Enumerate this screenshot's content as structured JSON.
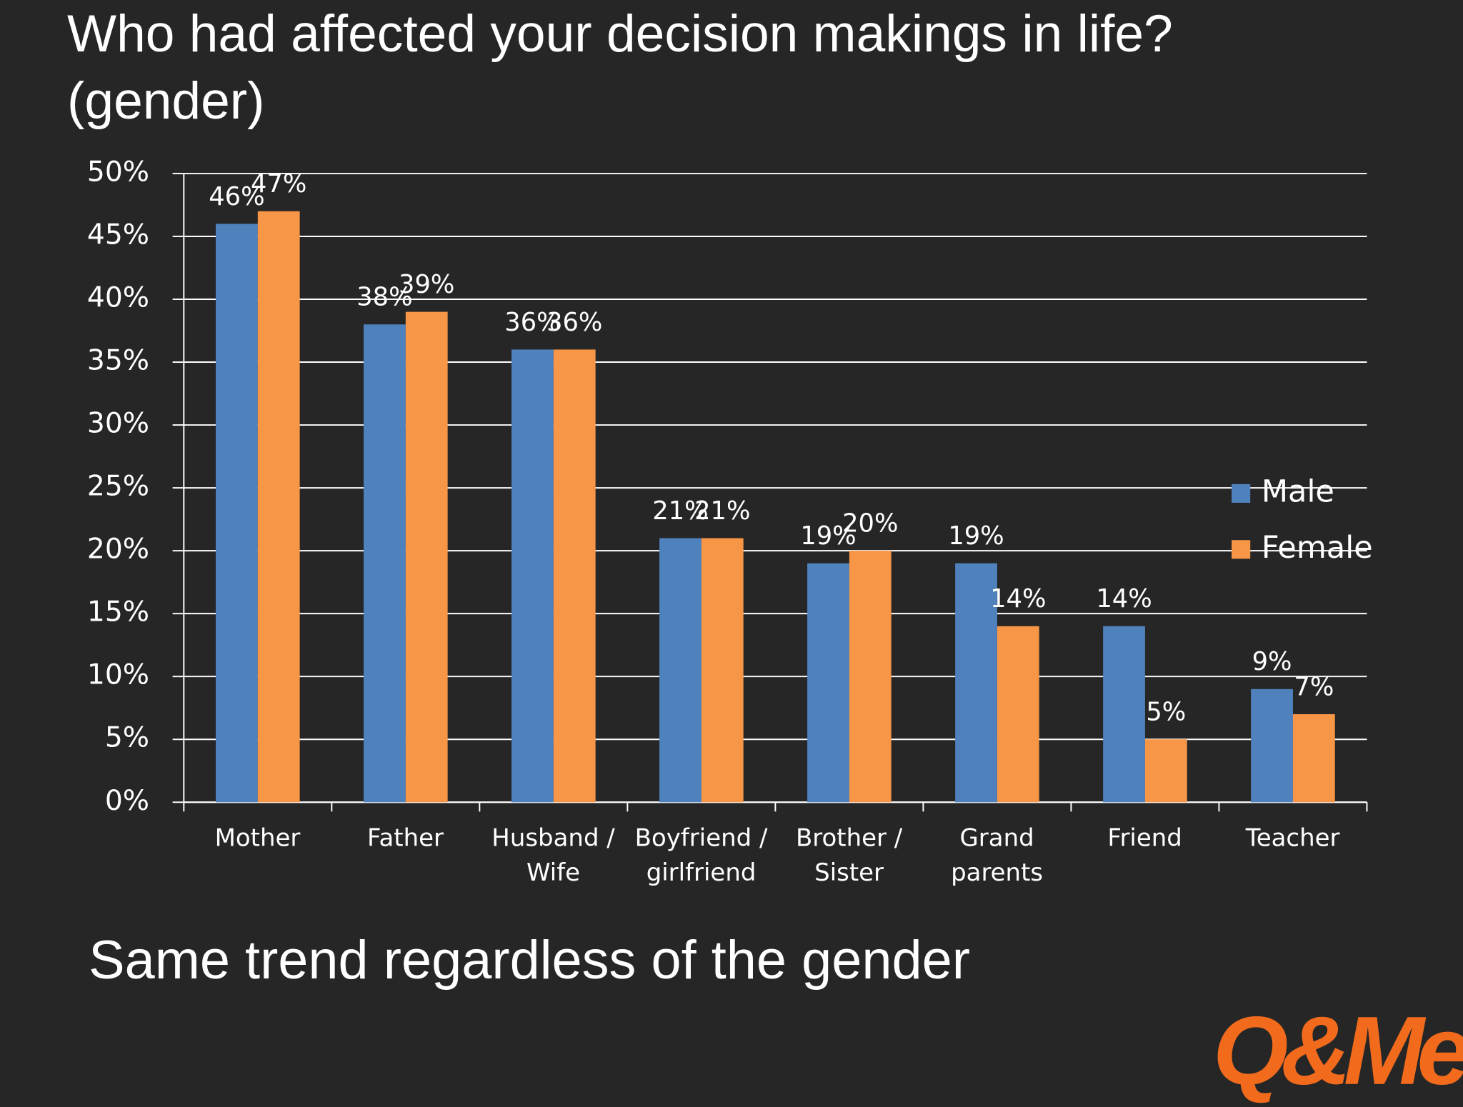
{
  "chart_data": {
    "type": "bar",
    "title": "Who had affected your decision makings in life?\n(gender)",
    "subtitle": "Same trend regardless of the gender",
    "logo": "Q&Me",
    "categories": [
      "Mother",
      "Father",
      "Husband /\nWife",
      "Boyfriend /\ngirlfriend",
      "Brother /\nSister",
      "Grand\nparents",
      "Friend",
      "Teacher"
    ],
    "series": [
      {
        "name": "Male",
        "color": "#4f81bd",
        "values": [
          46,
          38,
          36,
          21,
          19,
          19,
          14,
          9
        ],
        "value_labels": [
          "46%",
          "38%",
          "36%",
          "21%",
          "19%",
          "19%",
          "14%",
          "9%"
        ]
      },
      {
        "name": "Female",
        "color": "#f79646",
        "values": [
          47,
          39,
          36,
          21,
          20,
          14,
          5,
          7
        ],
        "value_labels": [
          "47%",
          "39%",
          "36%",
          "21%",
          "20%",
          "14%",
          "5%",
          "7%"
        ]
      }
    ],
    "ylim": [
      0,
      50
    ],
    "yticks": [
      {
        "value": 0,
        "label": "0%"
      },
      {
        "value": 5,
        "label": "5%"
      },
      {
        "value": 10,
        "label": "10%"
      },
      {
        "value": 15,
        "label": "15%"
      },
      {
        "value": 20,
        "label": "20%"
      },
      {
        "value": 25,
        "label": "25%"
      },
      {
        "value": 30,
        "label": "30%"
      },
      {
        "value": 35,
        "label": "35%"
      },
      {
        "value": 40,
        "label": "40%"
      },
      {
        "value": 45,
        "label": "45%"
      },
      {
        "value": 50,
        "label": "50%"
      }
    ],
    "grid": true,
    "legend": "right"
  }
}
